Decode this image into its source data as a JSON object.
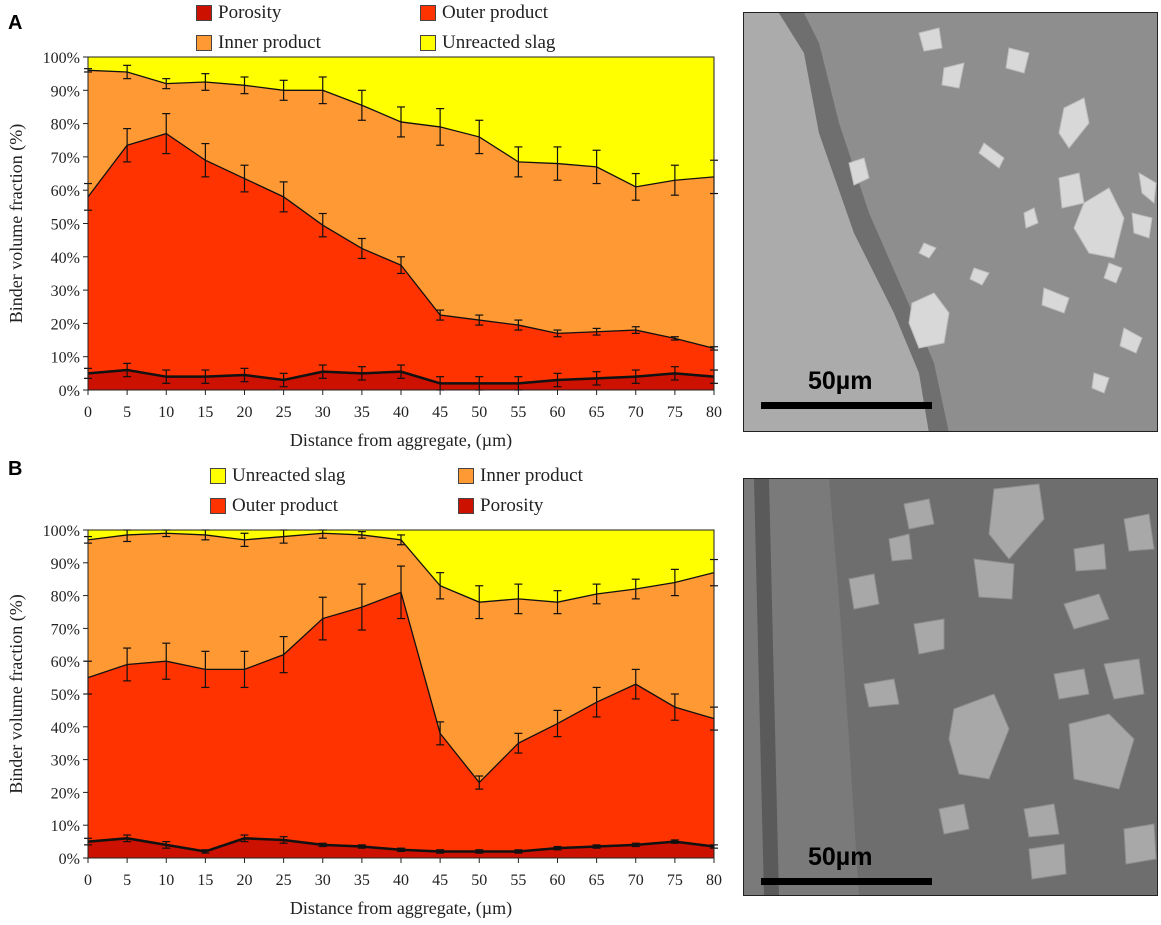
{
  "figures": [
    {
      "panel_label": "A",
      "scale_bar_label": "50µm"
    },
    {
      "panel_label": "B",
      "scale_bar_label": "50µm"
    }
  ],
  "colors": {
    "porosity": "#cc1100",
    "outer": "#ff3300",
    "inner": "#ff9933",
    "slag": "#ffff00"
  },
  "chart_data": [
    {
      "type": "area",
      "stacked": true,
      "xlabel": "Distance from aggregate, (µm)",
      "ylabel": "Binder volume fraction (%)",
      "xlim": [
        0,
        80
      ],
      "ylim": [
        0,
        100
      ],
      "x": [
        0,
        5,
        10,
        15,
        20,
        25,
        30,
        35,
        40,
        45,
        50,
        55,
        60,
        65,
        70,
        75,
        80
      ],
      "y_ticks": [
        "0%",
        "10%",
        "20%",
        "30%",
        "40%",
        "50%",
        "60%",
        "70%",
        "80%",
        "90%",
        "100%"
      ],
      "legend_layout": "top",
      "legend": [
        "Porosity",
        "Outer product",
        "Inner product",
        "Unreacted slag"
      ],
      "series": [
        {
          "name": "Porosity",
          "color": "#cc1100",
          "cumulative": [
            5,
            6,
            4,
            4,
            4.5,
            3,
            5.5,
            5,
            5.5,
            2,
            2,
            2,
            3,
            3.5,
            4,
            5,
            4
          ],
          "error": [
            1.5,
            2,
            2,
            2,
            2,
            2,
            2,
            2,
            2,
            2,
            2,
            2,
            2,
            2,
            2,
            2,
            2
          ]
        },
        {
          "name": "Outer product",
          "color": "#ff3300",
          "cumulative": [
            58,
            73.5,
            77,
            69,
            63.5,
            58,
            49.5,
            42.5,
            37.5,
            22.5,
            21,
            19.5,
            17,
            17.5,
            18,
            15.5,
            12.5
          ],
          "error": [
            4,
            5,
            6,
            5,
            4,
            4.5,
            3.5,
            3,
            2.5,
            1.5,
            1.5,
            1.5,
            1,
            1,
            1,
            0.5,
            0.5
          ]
        },
        {
          "name": "Inner product",
          "color": "#ff9933",
          "cumulative": [
            96,
            95.5,
            92,
            92.5,
            91.5,
            90,
            90,
            85.5,
            80.5,
            79,
            76,
            68.5,
            68,
            67,
            61,
            63,
            64
          ],
          "error": [
            0.5,
            2,
            1.5,
            2.5,
            2.5,
            3,
            4,
            4.5,
            4.5,
            5.5,
            5,
            4.5,
            5,
            5,
            4,
            4.5,
            5
          ]
        },
        {
          "name": "Unreacted slag",
          "color": "#ffff00",
          "cumulative": [
            100,
            100,
            100,
            100,
            100,
            100,
            100,
            100,
            100,
            100,
            100,
            100,
            100,
            100,
            100,
            100,
            100
          ]
        }
      ]
    },
    {
      "type": "area",
      "stacked": true,
      "xlabel": "Distance from aggregate, (µm)",
      "ylabel": "Binder volume fraction (%)",
      "xlim": [
        0,
        80
      ],
      "ylim": [
        0,
        100
      ],
      "x": [
        0,
        5,
        10,
        15,
        20,
        25,
        30,
        35,
        40,
        45,
        50,
        55,
        60,
        65,
        70,
        75,
        80
      ],
      "y_ticks": [
        "0%",
        "10%",
        "20%",
        "30%",
        "40%",
        "50%",
        "60%",
        "70%",
        "80%",
        "90%",
        "100%"
      ],
      "legend_layout": "top",
      "legend": [
        "Unreacted slag",
        "Inner product",
        "Outer product",
        "Porosity"
      ],
      "series": [
        {
          "name": "Porosity",
          "color": "#cc1100",
          "cumulative": [
            5,
            6,
            4,
            2,
            6,
            5.5,
            4,
            3.5,
            2.5,
            2,
            2,
            2,
            3,
            3.5,
            4,
            5,
            3.5
          ],
          "error": [
            1,
            1,
            1,
            0.5,
            1,
            1,
            0.5,
            0.5,
            0.5,
            0.5,
            0.5,
            0.5,
            0.5,
            0.5,
            0.5,
            0.5,
            0.5
          ]
        },
        {
          "name": "Outer product",
          "color": "#ff3300",
          "cumulative": [
            55,
            59,
            60,
            57.5,
            57.5,
            62,
            73,
            76.5,
            81,
            38,
            23,
            35,
            41,
            47.5,
            53,
            46,
            42.5
          ],
          "error": [
            5,
            5,
            5.5,
            5.5,
            5.5,
            5.5,
            6.5,
            7,
            8,
            3.5,
            2,
            3,
            4,
            4.5,
            4.5,
            4,
            3.5
          ]
        },
        {
          "name": "Inner product",
          "color": "#ff9933",
          "cumulative": [
            97,
            98.5,
            99,
            98.5,
            97,
            98,
            99,
            98.5,
            97,
            83,
            78,
            79,
            78,
            80.5,
            82,
            84,
            87
          ],
          "error": [
            1,
            2,
            1,
            1.5,
            2,
            2,
            1.5,
            1,
            1.5,
            4,
            5,
            4.5,
            3.5,
            3,
            3,
            4,
            4
          ]
        },
        {
          "name": "Unreacted slag",
          "color": "#ffff00",
          "cumulative": [
            100,
            100,
            100,
            100,
            100,
            100,
            100,
            100,
            100,
            100,
            100,
            100,
            100,
            100,
            100,
            100,
            100
          ]
        }
      ]
    }
  ]
}
